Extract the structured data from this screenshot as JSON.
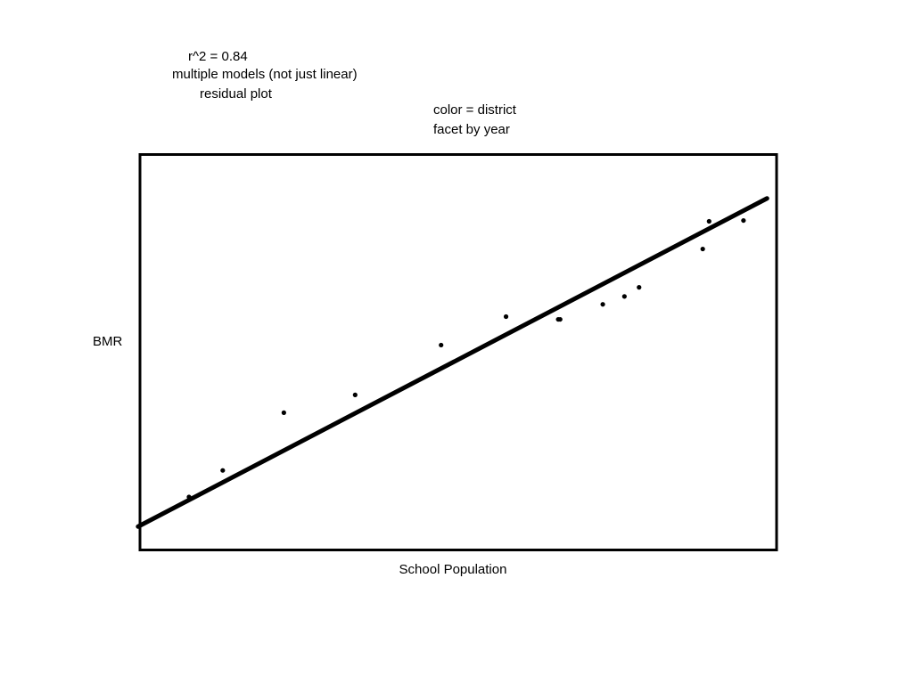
{
  "notes": {
    "r_squared": "r^2 = 0.84",
    "models": "multiple models (not just linear)",
    "residual": "residual plot",
    "color": "color = district",
    "facet": "facet by year"
  },
  "chart_data": {
    "type": "scatter",
    "title": "",
    "xlabel": "School Population",
    "ylabel": "BMR",
    "xlim": [
      0,
      100
    ],
    "ylim": [
      0,
      100
    ],
    "grid": false,
    "ticks": false,
    "points": [
      {
        "x": 7.7,
        "y": 13.3
      },
      {
        "x": 13.0,
        "y": 20.0
      },
      {
        "x": 22.6,
        "y": 34.6
      },
      {
        "x": 33.8,
        "y": 39.1
      },
      {
        "x": 47.3,
        "y": 51.7
      },
      {
        "x": 57.5,
        "y": 58.9
      },
      {
        "x": 65.7,
        "y": 58.2
      },
      {
        "x": 66.0,
        "y": 58.2
      },
      {
        "x": 72.7,
        "y": 62.0
      },
      {
        "x": 76.1,
        "y": 64.0
      },
      {
        "x": 78.4,
        "y": 66.3
      },
      {
        "x": 88.4,
        "y": 76.0
      },
      {
        "x": 89.4,
        "y": 83.0
      },
      {
        "x": 94.8,
        "y": 83.2
      }
    ],
    "fit_line": {
      "x": [
        -0.3,
        98.5
      ],
      "y": [
        5.8,
        88.8
      ]
    }
  },
  "colors": {
    "ink": "#000000",
    "background": "#ffffff"
  }
}
